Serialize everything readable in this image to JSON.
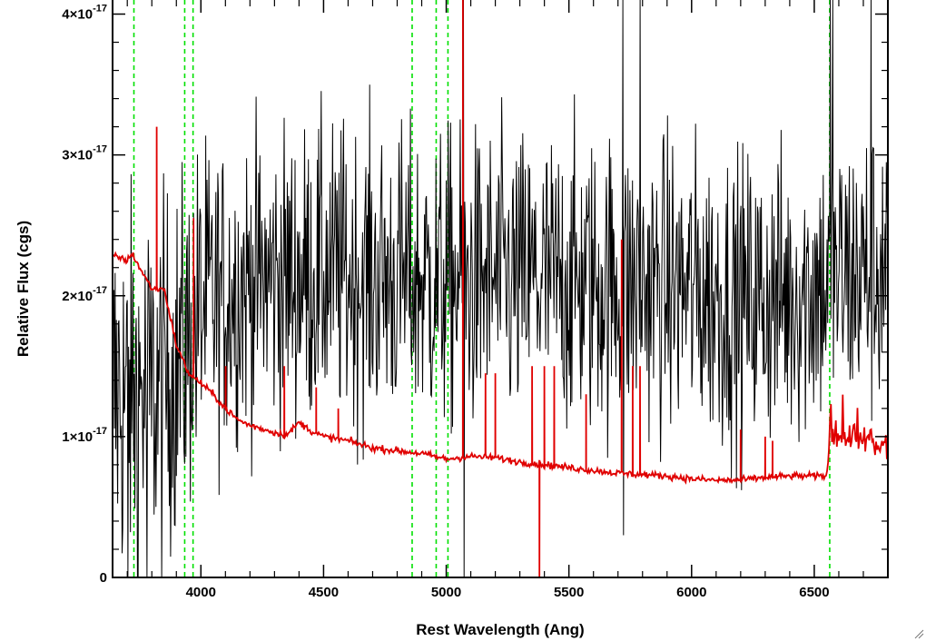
{
  "chart_data": {
    "type": "line",
    "title": "",
    "xlabel": "Rest Wavelength (Ang)",
    "ylabel": "Relative Flux (cgs)",
    "xlim": [
      3640,
      6800
    ],
    "ylim": [
      0,
      4.1e-17
    ],
    "x_ticks": [
      4000,
      4500,
      5000,
      5500,
      6000,
      6500
    ],
    "x_tick_labels": [
      "4000",
      "4500",
      "5000",
      "5500",
      "6000",
      "6500"
    ],
    "y_ticks": [
      0,
      1e-17,
      2e-17,
      3e-17,
      4e-17
    ],
    "y_tick_labels": [
      {
        "mantissa": "0",
        "exponent": ""
      },
      {
        "mantissa": "1×10",
        "exponent": "-17"
      },
      {
        "mantissa": "2×10",
        "exponent": "-17"
      },
      {
        "mantissa": "3×10",
        "exponent": "-17"
      },
      {
        "mantissa": "4×10",
        "exponent": "-17"
      }
    ],
    "grid": false,
    "reference_lines": {
      "color": "#00e000",
      "style": "dashed",
      "x": [
        3727,
        3934,
        3968,
        4861,
        4959,
        5007,
        6563
      ]
    },
    "series": [
      {
        "color": "#000000",
        "style": "noisy-spectrum",
        "continuum_x": [
          3650,
          3700,
          3800,
          3900,
          4000,
          4200,
          4500,
          5000,
          5500,
          6000,
          6200,
          6400,
          6550,
          6800
        ],
        "continuum_y": [
          1.3e-17,
          1.3e-17,
          1.3e-17,
          1.5e-17,
          1.9e-17,
          2.1e-17,
          2.15e-17,
          2.1e-17,
          2.1e-17,
          2.05e-17,
          1.95e-17,
          2e-17,
          2.1e-17,
          2.2e-17
        ],
        "noise_x": [
          3650,
          4000,
          4100,
          6800
        ],
        "noise_sigma": [
          7e-18,
          6e-18,
          5.3e-18,
          5.3e-18
        ],
        "spikes": [
          {
            "x": 5072,
            "y": 0
          },
          {
            "x": 5068,
            "y": 4.1e-17
          },
          {
            "x": 5720,
            "y": 4.1e-17
          },
          {
            "x": 5722,
            "y": 3e-18
          },
          {
            "x": 5790,
            "y": 4.1e-17
          },
          {
            "x": 6563,
            "y": 4.1e-17
          },
          {
            "x": 6575,
            "y": 4.1e-17
          },
          {
            "x": 6730,
            "y": 4.1e-17
          },
          {
            "x": 3700,
            "y": 0
          },
          {
            "x": 3740,
            "y": 0
          },
          {
            "x": 3780,
            "y": 0
          }
        ]
      },
      {
        "color": "#e00000",
        "style": "model-spectrum",
        "x": [
          3650,
          3700,
          3720,
          3750,
          3800,
          3850,
          3900,
          3950,
          4000,
          4050,
          4100,
          4150,
          4200,
          4300,
          4350,
          4400,
          4450,
          4500,
          4600,
          4700,
          4800,
          4900,
          5000,
          5100,
          5200,
          5300,
          5400,
          5500,
          5600,
          5700,
          5800,
          5900,
          6000,
          6100,
          6200,
          6300,
          6400,
          6500,
          6550,
          6560,
          6600,
          6700,
          6800
        ],
        "y": [
          2.28e-17,
          2.25e-17,
          2.3e-17,
          2.2e-17,
          2.05e-17,
          2.05e-17,
          1.65e-17,
          1.45e-17,
          1.38e-17,
          1.3e-17,
          1.2e-17,
          1.12e-17,
          1.08e-17,
          1.03e-17,
          1.01e-17,
          1.1e-17,
          1.04e-17,
          1e-17,
          9.7e-18,
          9.2e-18,
          9e-18,
          8.8e-18,
          8.4e-18,
          8.6e-18,
          8.5e-18,
          8.2e-18,
          8e-18,
          7.8e-18,
          7.6e-18,
          7.4e-18,
          7.3e-18,
          7.2e-18,
          7e-18,
          6.9e-18,
          6.9e-18,
          7.1e-18,
          7.2e-18,
          7.2e-18,
          7.2e-18,
          9e-18,
          9.5e-18,
          9e-18,
          8.5e-18
        ],
        "lines": [
          {
            "x": 3820,
            "y": 3.2e-17
          },
          {
            "x": 3970,
            "y": 2.55e-17
          },
          {
            "x": 4101,
            "y": 1.5e-17
          },
          {
            "x": 4340,
            "y": 1.5e-17
          },
          {
            "x": 4470,
            "y": 1.35e-17
          },
          {
            "x": 4560,
            "y": 1.2e-17
          },
          {
            "x": 5068,
            "y": 4.1e-17
          },
          {
            "x": 5160,
            "y": 1.45e-17
          },
          {
            "x": 5200,
            "y": 1.45e-17
          },
          {
            "x": 5350,
            "y": 1.5e-17
          },
          {
            "x": 5400,
            "y": 1.5e-17
          },
          {
            "x": 5440,
            "y": 1.5e-17
          },
          {
            "x": 5570,
            "y": 1.3e-17
          },
          {
            "x": 5715,
            "y": 2.4e-17
          },
          {
            "x": 5760,
            "y": 1.5e-17
          },
          {
            "x": 5790,
            "y": 1.5e-17
          },
          {
            "x": 6200,
            "y": 1.05e-17
          },
          {
            "x": 6300,
            "y": 1e-17
          },
          {
            "x": 6330,
            "y": 9.7e-18
          }
        ],
        "dips": [
          {
            "x": 5380,
            "y": 0
          }
        ]
      }
    ]
  }
}
